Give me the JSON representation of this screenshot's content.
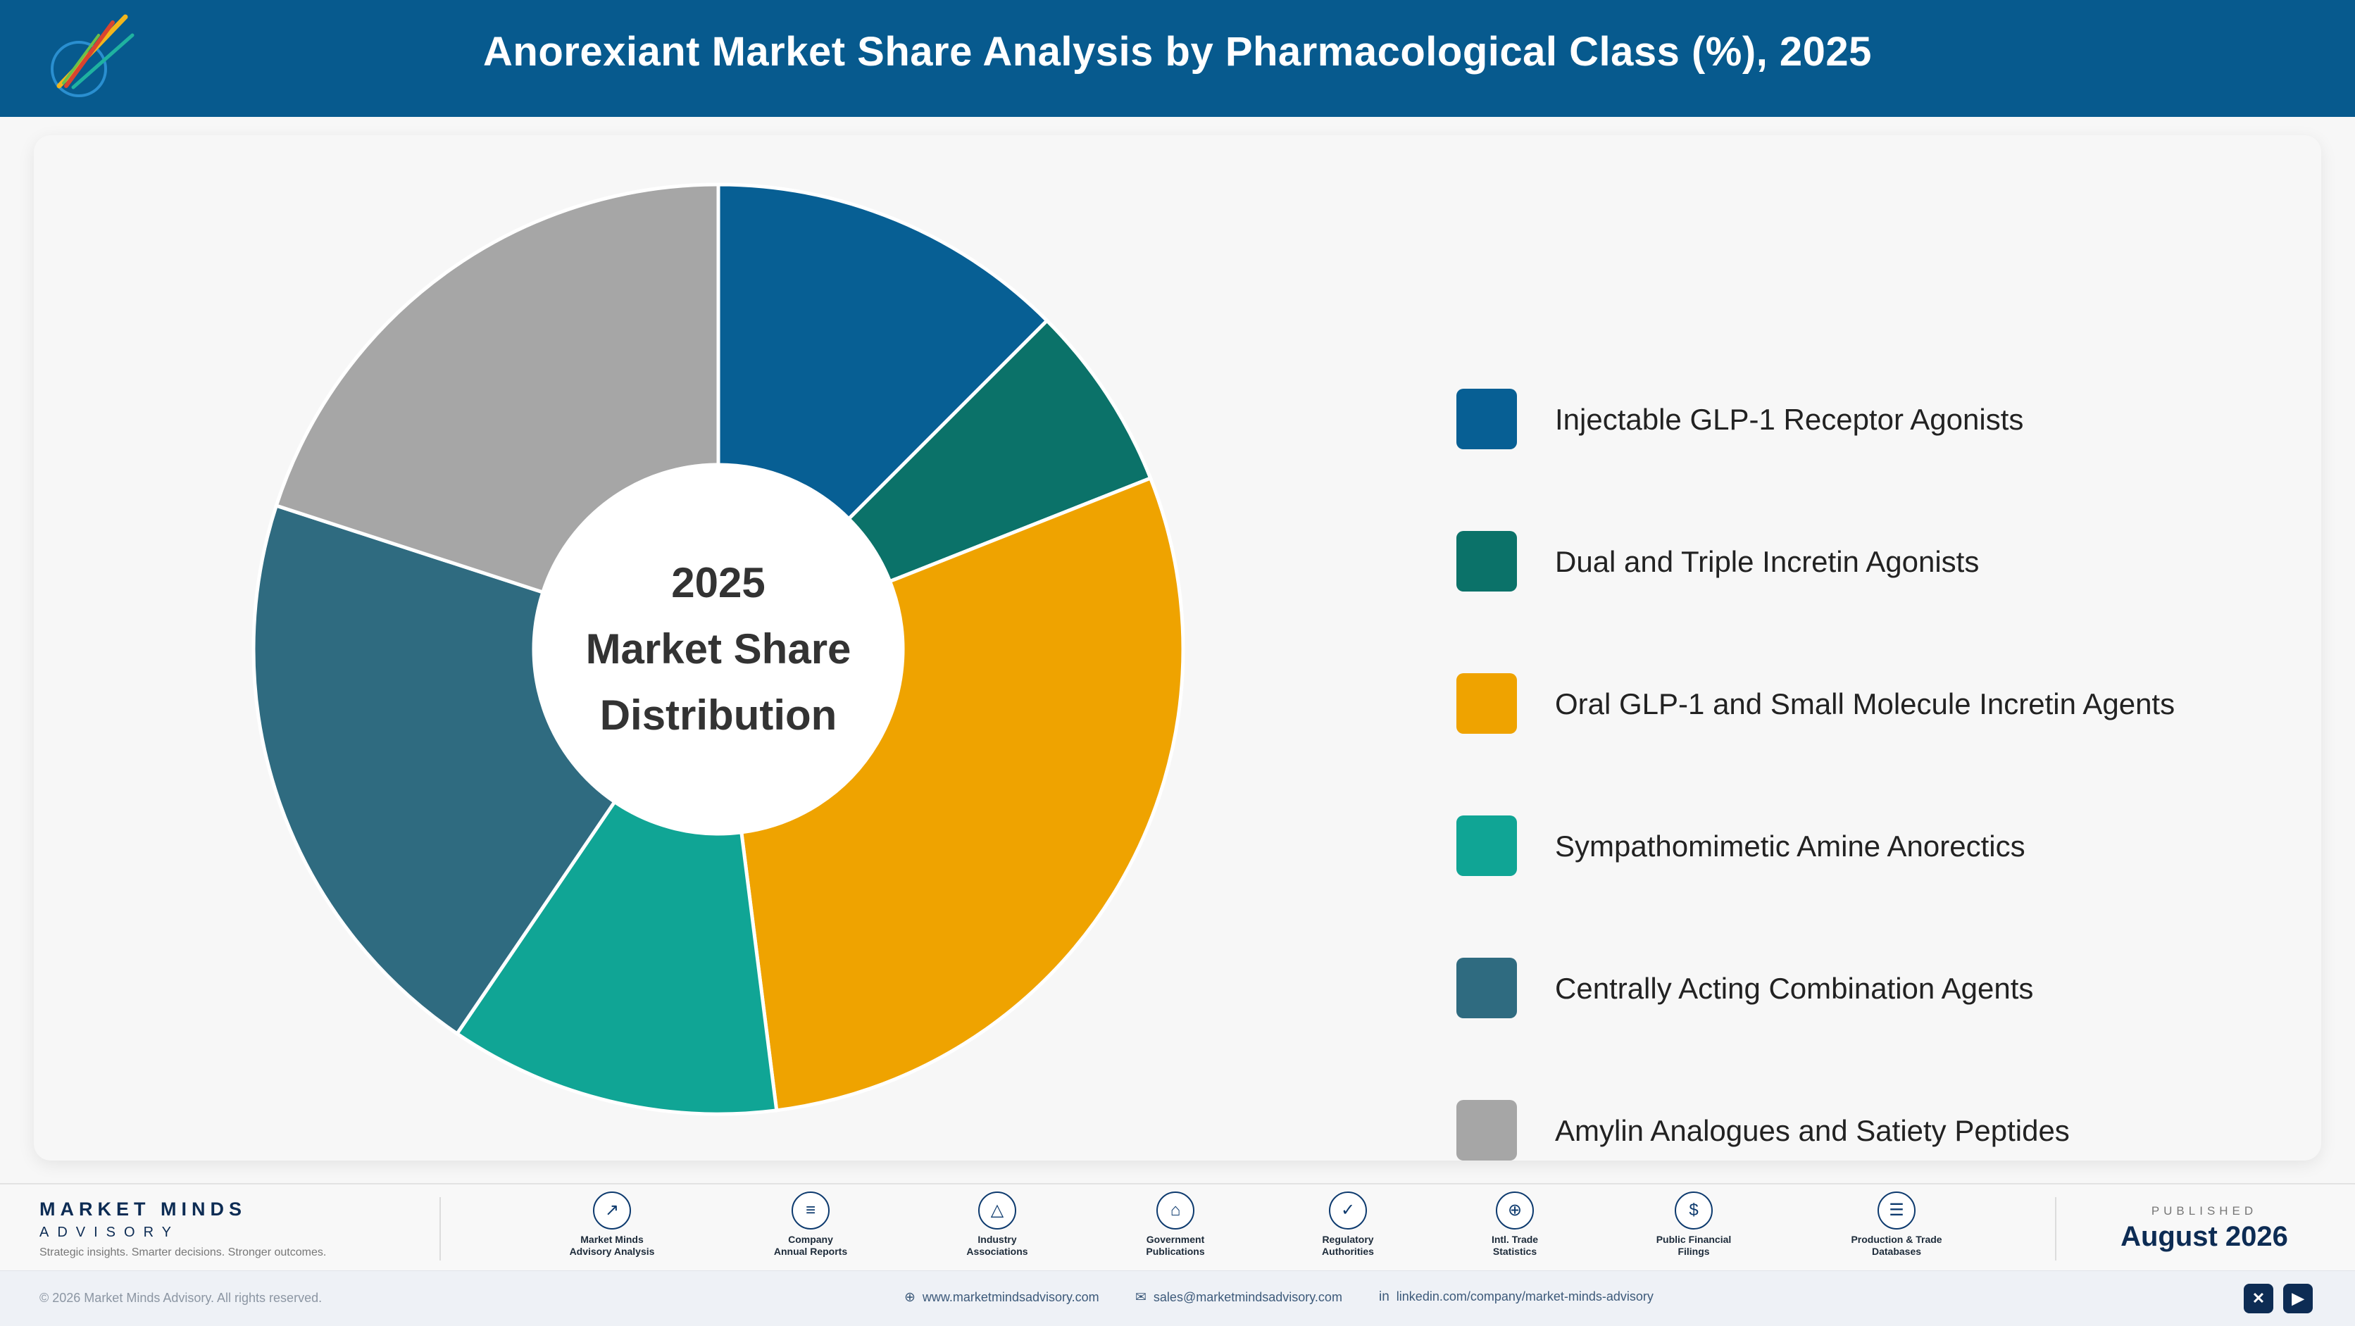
{
  "header": {
    "title": "Anorexiant Market Share Analysis by Pharmacological Class (%), 2025",
    "logo_icon": "rocket-logo-icon"
  },
  "chart_data": {
    "type": "pie",
    "title": "Anorexiant Market Share Analysis by Pharmacological Class (%), 2025",
    "center_label": [
      "2025",
      "Market Share",
      "Distribution"
    ],
    "legend_position": "right",
    "slices": [
      {
        "label": "Injectable GLP-1 Receptor Agonists",
        "value": 12.5,
        "color": "#075f94"
      },
      {
        "label": "Dual and Triple Incretin Agonists",
        "value": 6.5,
        "color": "#0b7269"
      },
      {
        "label": "Oral GLP-1 and Small Molecule Incretin Agents",
        "value": 29.0,
        "color": "#efa300"
      },
      {
        "label": "Sympathomimetic Amine Anorectics",
        "value": 11.5,
        "color": "#10a595"
      },
      {
        "label": "Centrally Acting Combination Agents",
        "value": 20.5,
        "color": "#2f6b80"
      },
      {
        "label": "Amylin Analogues and Satiety Peptides",
        "value": 20.0,
        "color": "#a6a6a6"
      }
    ]
  },
  "footer": {
    "brand_name": "MARKET MINDS",
    "brand_sub": "ADVISORY",
    "brand_tagline": "Strategic insights. Smarter decisions. Stronger outcomes.",
    "sources": [
      {
        "label": "Market Minds\nAdvisory Analysis",
        "icon": "trend-chart-icon",
        "glyph": "↗"
      },
      {
        "label": "Company\nAnnual Reports",
        "icon": "document-icon",
        "glyph": "≡"
      },
      {
        "label": "Industry\nAssociations",
        "icon": "network-icon",
        "glyph": "△"
      },
      {
        "label": "Government\nPublications",
        "icon": "government-building-icon",
        "glyph": "⌂"
      },
      {
        "label": "Regulatory\nAuthorities",
        "icon": "shield-check-icon",
        "glyph": "✓"
      },
      {
        "label": "Intl. Trade\nStatistics",
        "icon": "globe-icon",
        "glyph": "⊕"
      },
      {
        "label": "Public Financial\nFilings",
        "icon": "dollar-coin-icon",
        "glyph": "$"
      },
      {
        "label": "Production & Trade\nDatabases",
        "icon": "database-icon",
        "glyph": "☰"
      }
    ],
    "published_label": "PUBLISHED",
    "published_date": "August 2026"
  },
  "bottom_bar": {
    "copyright": "© 2026 Market Minds Advisory. All rights reserved.",
    "website": "www.marketmindsadvisory.com",
    "email": "sales@marketmindsadvisory.com",
    "linkedin": "linkedin.com/company/market-minds-advisory",
    "social": [
      {
        "icon": "x-icon",
        "glyph": "✕"
      },
      {
        "icon": "youtube-icon",
        "glyph": "▶"
      }
    ]
  }
}
